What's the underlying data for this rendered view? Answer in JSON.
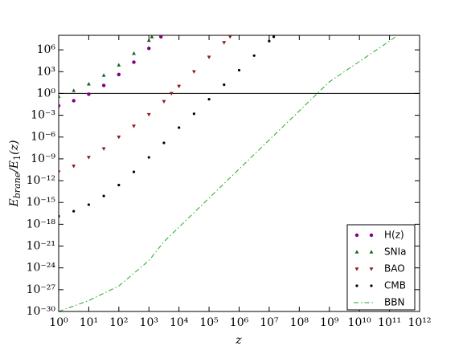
{
  "chart_data": {
    "type": "scatter",
    "xlabel": "z",
    "ylabel": [
      "E",
      "brane",
      "/E",
      "1",
      "(z)"
    ],
    "xscale": "log",
    "yscale": "log",
    "grid": false,
    "legend": "lower right",
    "xlim": [
      1,
      1000000000000.0
    ],
    "ylim": [
      1e-30,
      100000000.0
    ],
    "xticks": [
      {
        "value": 1,
        "label": "10⁰"
      },
      {
        "value": 10.0,
        "label": "10¹"
      },
      {
        "value": 100.0,
        "label": "10²"
      },
      {
        "value": 1000.0,
        "label": "10³"
      },
      {
        "value": 10000.0,
        "label": "10⁴"
      },
      {
        "value": 100000.0,
        "label": "10⁵"
      },
      {
        "value": 1000000.0,
        "label": "10⁶"
      },
      {
        "value": 10000000.0,
        "label": "10⁷"
      },
      {
        "value": 100000000.0,
        "label": "10⁸"
      },
      {
        "value": 1000000000.0,
        "label": "10⁹"
      },
      {
        "value": 10000000000.0,
        "label": "10¹⁰"
      },
      {
        "value": 100000000000.0,
        "label": "10¹¹"
      },
      {
        "value": 1000000000000.0,
        "label": "10¹²"
      }
    ],
    "yticks": [
      {
        "value": 1e-30,
        "label": "10⁻³⁰"
      },
      {
        "value": 1e-27,
        "label": "10⁻²⁷"
      },
      {
        "value": 1e-24,
        "label": "10⁻²⁴"
      },
      {
        "value": 1e-21,
        "label": "10⁻²¹"
      },
      {
        "value": 1e-18,
        "label": "10⁻¹⁸"
      },
      {
        "value": 1e-15,
        "label": "10⁻¹⁵"
      },
      {
        "value": 1e-12,
        "label": "10⁻¹²"
      },
      {
        "value": 1e-09,
        "label": "10⁻⁹"
      },
      {
        "value": 1e-06,
        "label": "10⁻⁶"
      },
      {
        "value": 0.001,
        "label": "10⁻³"
      },
      {
        "value": 1,
        "label": "10⁰"
      },
      {
        "value": 1000.0,
        "label": "10³"
      },
      {
        "value": 1000000.0,
        "label": "10⁶"
      }
    ],
    "hline": 1,
    "series": [
      {
        "name": "H(z)",
        "color": "#800080",
        "marker": "circle",
        "x": [
          1,
          3.162,
          10,
          31.62,
          100,
          316.2,
          1000,
          2512
        ],
        "values": [
          0.02,
          0.1,
          0.8,
          12.6,
          400,
          20000,
          1600000,
          63000000
        ]
      },
      {
        "name": "SNIa",
        "color": "#1b5e20",
        "marker": "triangle-up",
        "x": [
          1,
          3.162,
          10,
          31.62,
          100,
          316.2,
          1000,
          1259
        ],
        "values": [
          0.4,
          2.5,
          20,
          316,
          7900,
          316000,
          20000000,
          63000000
        ]
      },
      {
        "name": "BAO",
        "color": "#8b1a1a",
        "marker": "triangle-down",
        "x": [
          1,
          3.162,
          10,
          31.62,
          100,
          316.2,
          1000,
          3162,
          5623,
          10000,
          31620,
          100000,
          316200,
          501200
        ],
        "values": [
          1.6e-11,
          1e-10,
          1.6e-09,
          2.5e-08,
          1e-06,
          3.2e-05,
          0.00126,
          0.079,
          1,
          10,
          1000,
          100000,
          10000000,
          63000000
        ]
      },
      {
        "name": "CMB",
        "color": "#000000",
        "marker": "dot",
        "x": [
          1,
          3.162,
          10,
          31.62,
          100,
          316.2,
          1000,
          3162,
          10000,
          31620,
          100000,
          316200,
          1000000,
          3162000,
          10000000,
          14130000
        ],
        "values": [
          1.26e-17,
          6.3e-17,
          5e-16,
          7.9e-15,
          2.5e-13,
          1.6e-11,
          1.6e-09,
          1.6e-07,
          2e-05,
          0.0016,
          0.16,
          16,
          1600,
          160000,
          16000000,
          63000000
        ]
      },
      {
        "name": "BBN",
        "color": "#22aa22",
        "marker": "none",
        "linestyle": "dashdot",
        "x": [
          1,
          10,
          100,
          1000,
          3162,
          10000,
          100000,
          1000000,
          10000000,
          100000000,
          1000000000,
          10000000000,
          100000000000,
          158500000000
        ],
        "values": [
          1e-30,
          3.16e-29,
          3.16e-27,
          1e-23,
          4e-21,
          4e-19,
          4e-15,
          4e-11,
          4e-07,
          0.004,
          40,
          25000,
          16000000,
          63000000
        ]
      }
    ]
  }
}
